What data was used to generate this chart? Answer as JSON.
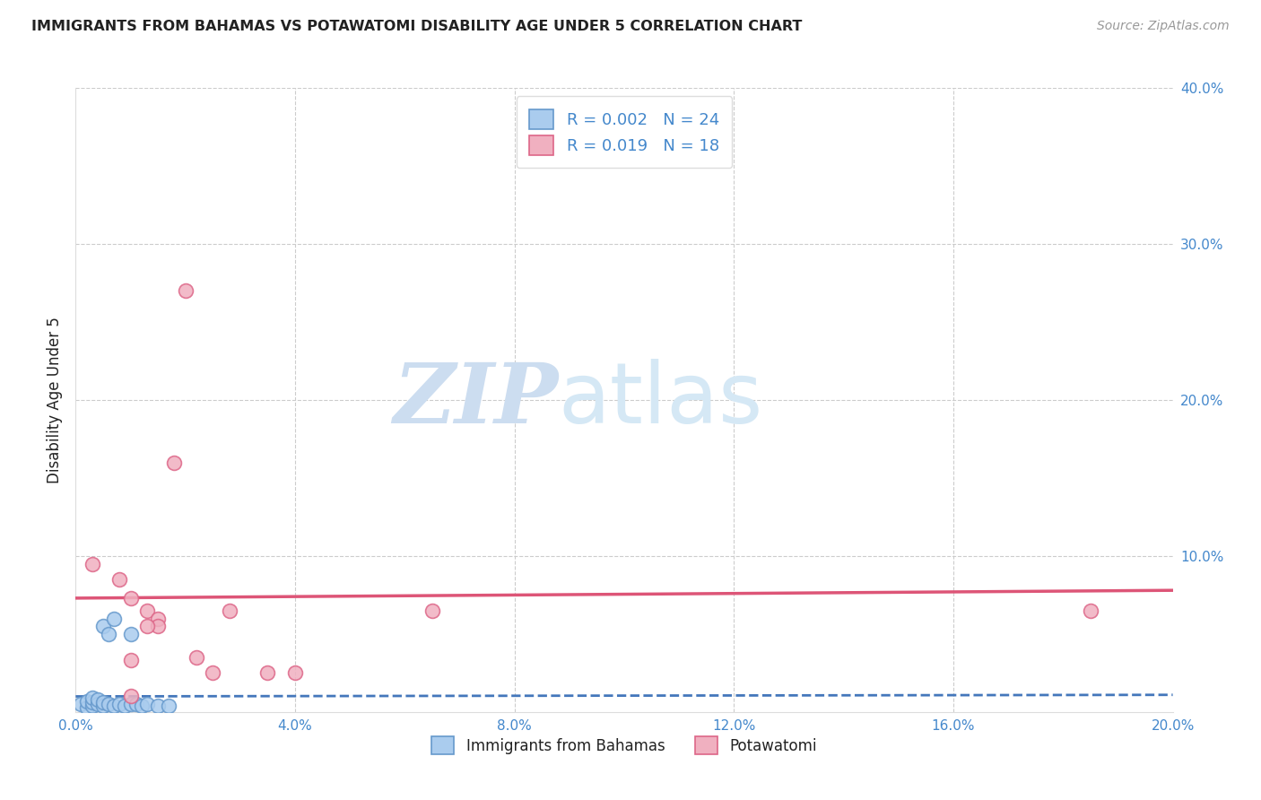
{
  "title": "IMMIGRANTS FROM BAHAMAS VS POTAWATOMI DISABILITY AGE UNDER 5 CORRELATION CHART",
  "source": "Source: ZipAtlas.com",
  "ylabel_label": "Disability Age Under 5",
  "legend_blue": "Immigrants from Bahamas",
  "legend_pink": "Potawatomi",
  "xlim": [
    0.0,
    0.2
  ],
  "ylim": [
    0.0,
    0.4
  ],
  "xticks": [
    0.0,
    0.04,
    0.08,
    0.12,
    0.16,
    0.2
  ],
  "yticks": [
    0.0,
    0.1,
    0.2,
    0.3,
    0.4
  ],
  "xtick_labels": [
    "0.0%",
    "",
    "",
    "",
    "",
    "20.0%"
  ],
  "ytick_labels_right": [
    "",
    "10.0%",
    "20.0%",
    "30.0%",
    "40.0%"
  ],
  "blue_scatter_x": [
    0.001,
    0.002,
    0.002,
    0.003,
    0.003,
    0.003,
    0.004,
    0.004,
    0.005,
    0.005,
    0.005,
    0.006,
    0.006,
    0.007,
    0.007,
    0.008,
    0.009,
    0.01,
    0.01,
    0.011,
    0.012,
    0.013,
    0.015,
    0.017
  ],
  "blue_scatter_y": [
    0.005,
    0.003,
    0.007,
    0.004,
    0.006,
    0.009,
    0.005,
    0.008,
    0.004,
    0.006,
    0.055,
    0.005,
    0.05,
    0.004,
    0.06,
    0.005,
    0.004,
    0.005,
    0.05,
    0.005,
    0.004,
    0.005,
    0.004,
    0.004
  ],
  "pink_scatter_x": [
    0.003,
    0.008,
    0.01,
    0.013,
    0.015,
    0.015,
    0.018,
    0.02,
    0.022,
    0.025,
    0.028,
    0.035,
    0.04,
    0.065,
    0.185,
    0.013,
    0.01,
    0.01
  ],
  "pink_scatter_y": [
    0.095,
    0.085,
    0.073,
    0.065,
    0.06,
    0.055,
    0.16,
    0.27,
    0.035,
    0.025,
    0.065,
    0.025,
    0.025,
    0.065,
    0.065,
    0.055,
    0.033,
    0.01
  ],
  "blue_R": 0.002,
  "blue_N": 24,
  "pink_R": 0.019,
  "pink_N": 18,
  "blue_fill": "#aaccee",
  "pink_fill": "#f0b0c0",
  "blue_edge": "#6699cc",
  "pink_edge": "#dd6688",
  "blue_line_color": "#4477bb",
  "pink_line_color": "#dd5577",
  "title_color": "#222222",
  "tick_color": "#4488cc",
  "legend_text_color": "#4488cc",
  "watermark_zip_color": "#ccddf0",
  "watermark_atlas_color": "#d5e8f5",
  "grid_color": "#cccccc",
  "blue_trend_y0": 0.01,
  "blue_trend_y1": 0.011,
  "pink_trend_y0": 0.073,
  "pink_trend_y1": 0.078
}
